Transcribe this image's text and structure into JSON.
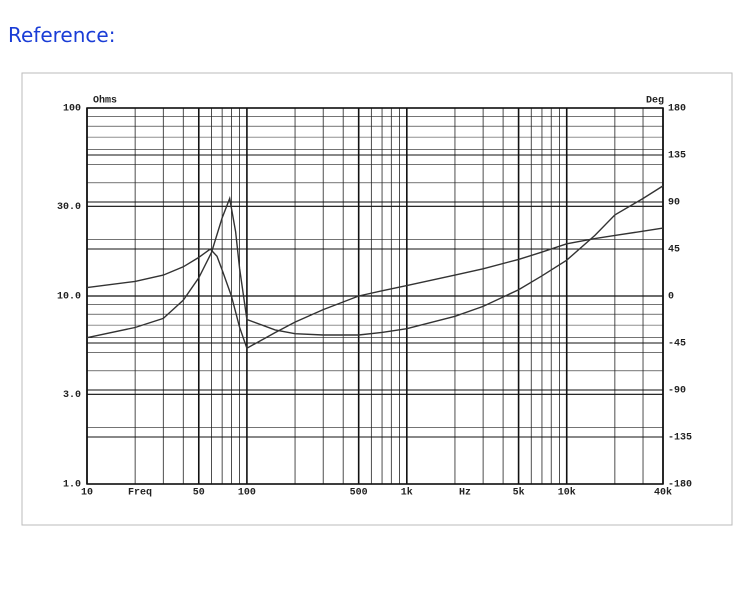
{
  "heading": "Reference:",
  "chart_data": {
    "type": "line",
    "xlabel": "Freq",
    "xunit": "Hz",
    "ylabel": "Ohms",
    "y2label": "Deg",
    "xscale": "log",
    "yscale": "log",
    "grid": true,
    "xlim": [
      10,
      40000
    ],
    "ylim": [
      1,
      100
    ],
    "y2lim": [
      -180,
      180
    ],
    "xticks": [
      10,
      50,
      100,
      500,
      {
        "value": 1000,
        "label": "1k"
      },
      {
        "value": 5000,
        "label": "5k"
      },
      {
        "value": 10000,
        "label": "10k"
      },
      {
        "value": 40000,
        "label": "40k"
      }
    ],
    "yticks": [
      {
        "value": 1,
        "label": "1.0"
      },
      {
        "value": 3,
        "label": "3.0"
      },
      {
        "value": 10,
        "label": "10.0"
      },
      {
        "value": 30,
        "label": "30.0"
      },
      100
    ],
    "y2ticks": [
      -180,
      -135,
      -90,
      -45,
      0,
      45,
      90,
      135,
      180
    ],
    "series": [
      {
        "color": "#333333",
        "x": [
          10,
          20,
          30,
          40,
          50,
          60,
          70,
          78,
          85,
          90,
          100,
          150,
          200,
          300,
          500,
          700,
          1000,
          2000,
          3000,
          5000,
          7000,
          10000,
          15000,
          20000,
          30000,
          40000
        ],
        "values": [
          6.0,
          6.8,
          7.6,
          9.5,
          12.5,
          17,
          26,
          33,
          22,
          14,
          7.5,
          6.6,
          6.3,
          6.2,
          6.2,
          6.4,
          6.7,
          7.8,
          8.8,
          10.8,
          12.8,
          15.5,
          21,
          27,
          33,
          38.5
        ]
      },
      {
        "color": "#333333",
        "axis": "y2",
        "x": [
          10,
          20,
          30,
          40,
          50,
          59,
          65,
          70,
          80,
          90,
          100,
          150,
          200,
          300,
          500,
          700,
          1000,
          2000,
          3000,
          5000,
          7000,
          10000,
          15000,
          20000,
          30000,
          40000
        ],
        "values": [
          8,
          14,
          20,
          28,
          37,
          45,
          38,
          25,
          0,
          -30,
          -50,
          -35,
          -25,
          -13,
          0,
          5,
          10,
          20,
          26,
          35,
          42,
          50,
          55,
          58,
          62,
          65
        ]
      }
    ]
  }
}
